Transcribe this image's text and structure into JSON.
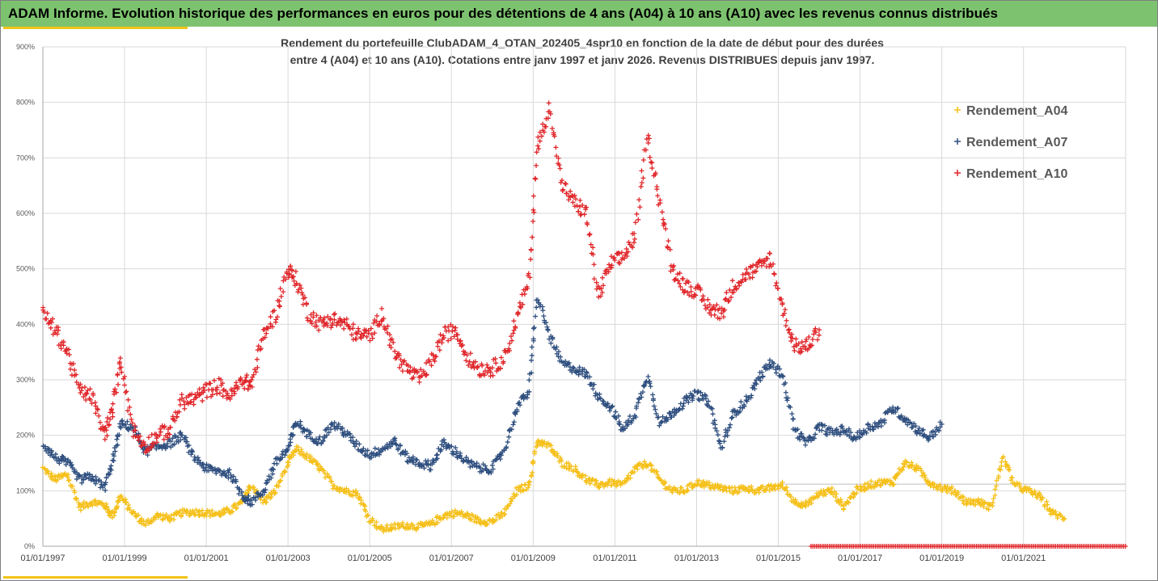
{
  "header": {
    "title": "ADAM Informe. Evolution historique des performances en euros pour des détentions de 4 ans (A04) à 10 ans (A10) avec les revenus connus distribués",
    "bar_color": "#7dc36f",
    "accent_color": "#f2c318"
  },
  "chart_data": {
    "type": "scatter",
    "title_line1": "Rendement du portefeuille ClubADAM_4_OTAN_202405_4spr10  en fonction de la date de début pour des durées",
    "title_line2": "entre 4 (A04) et 10 ans (A10). Cotations entre janv 1997 et janv 2026. Revenus DISTRIBUES depuis janv 1997.",
    "xlabel": "",
    "ylabel": "",
    "xlim": [
      1997.0,
      2023.5
    ],
    "ylim": [
      0,
      900
    ],
    "y_ticks": [
      0,
      100,
      200,
      300,
      400,
      500,
      600,
      700,
      800,
      900
    ],
    "y_tick_labels": [
      "0%",
      "100%",
      "200%",
      "300%",
      "400%",
      "500%",
      "600%",
      "700%",
      "800%",
      "900%"
    ],
    "x_ticks": [
      1997,
      1999,
      2001,
      2003,
      2005,
      2007,
      2009,
      2011,
      2013,
      2015,
      2017,
      2019,
      2021
    ],
    "x_tick_labels": [
      "01/01/1997",
      "01/01/1999",
      "01/01/2001",
      "01/01/2003",
      "01/01/2005",
      "01/01/2007",
      "01/01/2009",
      "01/01/2011",
      "01/01/2013",
      "01/01/2015",
      "01/01/2017",
      "01/01/2019",
      "01/01/2021"
    ],
    "grid": true,
    "legend_position": "right",
    "series": [
      {
        "name": "Rendement_A04",
        "color": "#f5c01a",
        "x": [
          1997.0,
          1997.3,
          1997.6,
          1997.9,
          1998.2,
          1998.5,
          1998.7,
          1998.9,
          1999.2,
          1999.5,
          1999.8,
          2000.1,
          2000.4,
          2000.7,
          2001.0,
          2001.3,
          2001.6,
          2001.9,
          2002.1,
          2002.4,
          2002.7,
          2003.0,
          2003.2,
          2003.5,
          2003.8,
          2004.1,
          2004.4,
          2004.7,
          2005.0,
          2005.3,
          2005.6,
          2005.9,
          2006.2,
          2006.5,
          2006.8,
          2007.1,
          2007.4,
          2007.7,
          2008.0,
          2008.3,
          2008.6,
          2008.9,
          2009.1,
          2009.4,
          2009.7,
          2010.0,
          2010.3,
          2010.6,
          2010.9,
          2011.2,
          2011.5,
          2011.8,
          2012.1,
          2012.4,
          2012.7,
          2013.0,
          2013.3,
          2013.6,
          2013.9,
          2014.2,
          2014.5,
          2014.8,
          2015.1,
          2015.4,
          2015.7,
          2016.0,
          2016.3,
          2016.6,
          2016.9,
          2017.2,
          2017.5,
          2017.8,
          2018.1,
          2018.4,
          2018.7,
          2019.0,
          2019.3,
          2019.6,
          2019.9,
          2020.2,
          2020.5,
          2020.8,
          2021.1,
          2021.4,
          2021.7,
          2022.0
        ],
        "values": [
          140,
          120,
          130,
          70,
          80,
          75,
          55,
          90,
          60,
          40,
          55,
          50,
          60,
          62,
          60,
          58,
          65,
          80,
          110,
          80,
          100,
          150,
          175,
          160,
          140,
          110,
          100,
          95,
          50,
          30,
          35,
          38,
          35,
          40,
          55,
          60,
          55,
          45,
          45,
          60,
          100,
          110,
          190,
          180,
          150,
          140,
          120,
          110,
          115,
          110,
          140,
          150,
          120,
          100,
          100,
          115,
          110,
          105,
          100,
          105,
          100,
          105,
          110,
          80,
          75,
          95,
          100,
          70,
          100,
          110,
          115,
          115,
          150,
          140,
          115,
          105,
          100,
          80,
          80,
          70,
          160,
          110,
          100,
          90,
          60,
          50
        ]
      },
      {
        "name": "Rendement_A07",
        "color": "#2f4f7f",
        "x": [
          1997.0,
          1997.3,
          1997.6,
          1997.9,
          1998.2,
          1998.5,
          1998.7,
          1998.9,
          1999.2,
          1999.5,
          1999.8,
          2000.1,
          2000.4,
          2000.7,
          2001.0,
          2001.3,
          2001.6,
          2001.9,
          2002.1,
          2002.4,
          2002.7,
          2003.0,
          2003.2,
          2003.5,
          2003.8,
          2004.1,
          2004.4,
          2004.7,
          2005.0,
          2005.3,
          2005.6,
          2005.9,
          2006.2,
          2006.5,
          2006.8,
          2007.1,
          2007.4,
          2007.7,
          2008.0,
          2008.3,
          2008.6,
          2008.9,
          2009.1,
          2009.4,
          2009.7,
          2010.0,
          2010.3,
          2010.6,
          2010.9,
          2011.2,
          2011.5,
          2011.8,
          2012.1,
          2012.4,
          2012.7,
          2013.0,
          2013.3,
          2013.6,
          2013.9,
          2014.2,
          2014.5,
          2014.8,
          2015.1,
          2015.4,
          2015.7,
          2016.0,
          2016.3,
          2016.6,
          2016.9,
          2017.2,
          2017.5,
          2017.8,
          2018.1,
          2018.4,
          2018.7,
          2019.0
        ],
        "values": [
          185,
          160,
          150,
          120,
          125,
          105,
          150,
          220,
          215,
          170,
          180,
          185,
          200,
          160,
          140,
          135,
          130,
          90,
          80,
          100,
          150,
          175,
          225,
          200,
          190,
          220,
          205,
          180,
          165,
          175,
          190,
          160,
          150,
          145,
          185,
          170,
          150,
          140,
          140,
          175,
          250,
          280,
          450,
          380,
          330,
          320,
          310,
          270,
          250,
          210,
          240,
          310,
          220,
          240,
          260,
          275,
          260,
          175,
          240,
          260,
          300,
          330,
          310,
          210,
          185,
          215,
          205,
          210,
          195,
          215,
          220,
          250,
          230,
          210,
          195,
          220
        ]
      },
      {
        "name": "Rendement_A10",
        "color": "#e0262a",
        "x": [
          1997.0,
          1997.3,
          1997.6,
          1997.9,
          1998.2,
          1998.5,
          1998.7,
          1998.9,
          1999.2,
          1999.5,
          1999.8,
          2000.1,
          2000.4,
          2000.7,
          2001.0,
          2001.3,
          2001.6,
          2001.9,
          2002.1,
          2002.4,
          2002.7,
          2003.0,
          2003.2,
          2003.5,
          2003.8,
          2004.1,
          2004.4,
          2004.7,
          2005.0,
          2005.3,
          2005.6,
          2005.9,
          2006.2,
          2006.5,
          2006.8,
          2007.1,
          2007.4,
          2007.7,
          2008.0,
          2008.3,
          2008.6,
          2008.9,
          2009.1,
          2009.4,
          2009.7,
          2010.0,
          2010.3,
          2010.6,
          2010.9,
          2011.2,
          2011.5,
          2011.8,
          2012.1,
          2012.4,
          2012.7,
          2013.0,
          2013.3,
          2013.6,
          2013.9,
          2014.2,
          2014.5,
          2014.8,
          2015.1,
          2015.4,
          2015.7,
          2016.0
        ],
        "values": [
          420,
          390,
          350,
          280,
          270,
          200,
          240,
          340,
          210,
          180,
          200,
          210,
          260,
          265,
          280,
          290,
          270,
          300,
          290,
          380,
          420,
          500,
          480,
          420,
          400,
          410,
          400,
          380,
          380,
          420,
          350,
          320,
          300,
          330,
          380,
          390,
          340,
          320,
          320,
          340,
          410,
          480,
          720,
          790,
          650,
          620,
          600,
          450,
          510,
          520,
          560,
          740,
          620,
          500,
          470,
          460,
          430,
          420,
          470,
          490,
          500,
          520,
          430,
          360,
          360,
          390
        ]
      }
    ],
    "baseline_marks": {
      "color": "#e0262a",
      "x_start": 2015.8,
      "x_end": 2023.5,
      "value": 0
    }
  }
}
